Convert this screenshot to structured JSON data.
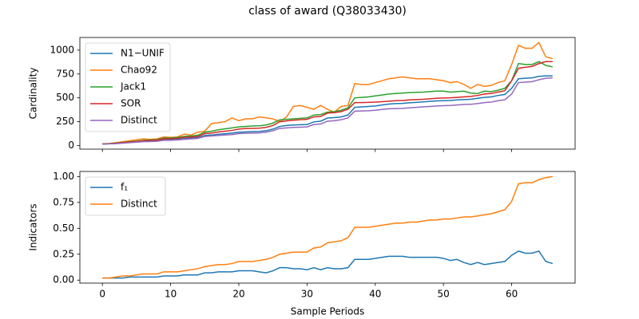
{
  "title": "class of award (Q38033430)",
  "chart_data": [
    {
      "type": "line",
      "ylabel": "Cardinality",
      "legend": "upper left",
      "x": [
        0,
        1,
        2,
        3,
        4,
        5,
        6,
        7,
        8,
        9,
        10,
        11,
        12,
        13,
        14,
        15,
        16,
        17,
        18,
        19,
        20,
        21,
        22,
        23,
        24,
        25,
        26,
        27,
        28,
        29,
        30,
        31,
        32,
        33,
        34,
        35,
        36,
        37,
        38,
        39,
        40,
        41,
        42,
        43,
        44,
        45,
        46,
        47,
        48,
        49,
        50,
        51,
        52,
        53,
        54,
        55,
        56,
        57,
        58,
        59,
        60,
        61,
        62,
        63,
        64,
        65,
        66
      ],
      "xlim": [
        -3.3,
        69.3
      ],
      "xticks": [
        0,
        10,
        20,
        30,
        40,
        50,
        60
      ],
      "ylim": [
        -38,
        1133
      ],
      "yticks": [
        0,
        250,
        500,
        750,
        1000
      ],
      "series": [
        {
          "name": "N1−UNIF",
          "color": "#1f77b4",
          "values": [
            15,
            18,
            22,
            27,
            33,
            38,
            44,
            47,
            50,
            60,
            62,
            65,
            72,
            78,
            83,
            105,
            110,
            118,
            124,
            130,
            140,
            143,
            146,
            148,
            155,
            172,
            200,
            210,
            215,
            218,
            220,
            248,
            255,
            288,
            292,
            300,
            320,
            400,
            405,
            410,
            415,
            425,
            435,
            440,
            442,
            448,
            452,
            458,
            463,
            468,
            470,
            472,
            478,
            482,
            485,
            495,
            505,
            510,
            525,
            535,
            600,
            700,
            705,
            710,
            725,
            730,
            730
          ]
        },
        {
          "name": "Chao92",
          "color": "#ff7f0e",
          "values": [
            18,
            22,
            30,
            40,
            50,
            60,
            70,
            65,
            70,
            90,
            85,
            90,
            120,
            110,
            140,
            150,
            230,
            240,
            250,
            290,
            260,
            280,
            280,
            300,
            290,
            280,
            250,
            300,
            410,
            420,
            400,
            380,
            420,
            380,
            350,
            410,
            420,
            650,
            640,
            640,
            660,
            680,
            700,
            710,
            720,
            710,
            700,
            700,
            700,
            690,
            680,
            660,
            670,
            640,
            600,
            640,
            620,
            630,
            660,
            680,
            850,
            1050,
            1020,
            1020,
            1080,
            930,
            910
          ]
        },
        {
          "name": "Jack1",
          "color": "#2ca02c",
          "values": [
            16,
            20,
            26,
            32,
            40,
            46,
            54,
            58,
            62,
            78,
            80,
            84,
            96,
            100,
            108,
            140,
            150,
            165,
            175,
            185,
            195,
            200,
            205,
            207,
            215,
            235,
            270,
            275,
            280,
            285,
            290,
            320,
            325,
            350,
            355,
            370,
            395,
            500,
            505,
            510,
            520,
            530,
            540,
            545,
            550,
            555,
            558,
            560,
            565,
            570,
            570,
            560,
            565,
            570,
            550,
            545,
            570,
            565,
            580,
            600,
            680,
            860,
            850,
            850,
            880,
            840,
            825
          ]
        },
        {
          "name": "SOR",
          "color": "#d62728",
          "values": [
            15,
            19,
            24,
            30,
            36,
            42,
            48,
            52,
            56,
            70,
            72,
            75,
            85,
            90,
            95,
            125,
            130,
            142,
            150,
            158,
            172,
            178,
            180,
            182,
            190,
            210,
            250,
            258,
            265,
            270,
            275,
            300,
            305,
            340,
            345,
            355,
            380,
            450,
            450,
            452,
            455,
            460,
            465,
            470,
            472,
            478,
            482,
            485,
            490,
            495,
            498,
            500,
            505,
            510,
            515,
            525,
            540,
            545,
            560,
            575,
            680,
            810,
            820,
            830,
            860,
            880,
            880
          ]
        },
        {
          "name": "Distinct",
          "color": "#9467bd",
          "values": [
            15,
            17,
            20,
            25,
            30,
            35,
            40,
            42,
            45,
            55,
            55,
            58,
            65,
            70,
            75,
            95,
            100,
            105,
            110,
            115,
            125,
            128,
            130,
            132,
            140,
            155,
            180,
            185,
            190,
            192,
            195,
            220,
            225,
            255,
            260,
            270,
            290,
            360,
            362,
            365,
            370,
            378,
            385,
            388,
            390,
            395,
            400,
            405,
            410,
            415,
            418,
            420,
            425,
            430,
            432,
            440,
            450,
            455,
            470,
            480,
            540,
            660,
            665,
            670,
            690,
            705,
            710
          ]
        }
      ]
    },
    {
      "type": "line",
      "ylabel": "Indicators",
      "xlabel": "Sample Periods",
      "legend": "upper left",
      "x": [
        0,
        1,
        2,
        3,
        4,
        5,
        6,
        7,
        8,
        9,
        10,
        11,
        12,
        13,
        14,
        15,
        16,
        17,
        18,
        19,
        20,
        21,
        22,
        23,
        24,
        25,
        26,
        27,
        28,
        29,
        30,
        31,
        32,
        33,
        34,
        35,
        36,
        37,
        38,
        39,
        40,
        41,
        42,
        43,
        44,
        45,
        46,
        47,
        48,
        49,
        50,
        51,
        52,
        53,
        54,
        55,
        56,
        57,
        58,
        59,
        60,
        61,
        62,
        63,
        64,
        65,
        66
      ],
      "xlim": [
        -3.3,
        69.3
      ],
      "xticks": [
        0,
        10,
        20,
        30,
        40,
        50,
        60
      ],
      "ylim": [
        -0.029,
        1.049
      ],
      "yticks": [
        {
          "value": 0,
          "label": "0.00"
        },
        {
          "value": 0.25,
          "label": "0.25"
        },
        {
          "value": 0.5,
          "label": "0.50"
        },
        {
          "value": 0.75,
          "label": "0.75"
        },
        {
          "value": 1,
          "label": "1.00"
        }
      ],
      "series": [
        {
          "name": "f₁",
          "color": "#1f77b4",
          "values": [
            0.02,
            0.02,
            0.02,
            0.02,
            0.03,
            0.03,
            0.03,
            0.03,
            0.03,
            0.04,
            0.04,
            0.04,
            0.05,
            0.05,
            0.05,
            0.07,
            0.07,
            0.08,
            0.08,
            0.08,
            0.09,
            0.09,
            0.09,
            0.08,
            0.07,
            0.09,
            0.12,
            0.12,
            0.11,
            0.11,
            0.1,
            0.12,
            0.1,
            0.12,
            0.11,
            0.11,
            0.12,
            0.2,
            0.2,
            0.2,
            0.21,
            0.22,
            0.23,
            0.23,
            0.23,
            0.22,
            0.22,
            0.22,
            0.22,
            0.22,
            0.21,
            0.19,
            0.2,
            0.17,
            0.15,
            0.17,
            0.15,
            0.16,
            0.17,
            0.18,
            0.24,
            0.28,
            0.26,
            0.26,
            0.28,
            0.18,
            0.16
          ]
        },
        {
          "name": "Distinct",
          "color": "#ff7f0e",
          "values": [
            0.02,
            0.02,
            0.03,
            0.04,
            0.04,
            0.05,
            0.06,
            0.06,
            0.06,
            0.08,
            0.08,
            0.08,
            0.09,
            0.1,
            0.11,
            0.13,
            0.14,
            0.15,
            0.15,
            0.16,
            0.18,
            0.18,
            0.18,
            0.19,
            0.2,
            0.22,
            0.25,
            0.26,
            0.27,
            0.27,
            0.27,
            0.31,
            0.32,
            0.36,
            0.37,
            0.38,
            0.41,
            0.51,
            0.51,
            0.51,
            0.52,
            0.53,
            0.54,
            0.55,
            0.55,
            0.56,
            0.56,
            0.57,
            0.58,
            0.58,
            0.59,
            0.59,
            0.6,
            0.61,
            0.61,
            0.62,
            0.63,
            0.64,
            0.66,
            0.68,
            0.76,
            0.93,
            0.94,
            0.94,
            0.97,
            0.99,
            1.0
          ]
        }
      ]
    }
  ]
}
